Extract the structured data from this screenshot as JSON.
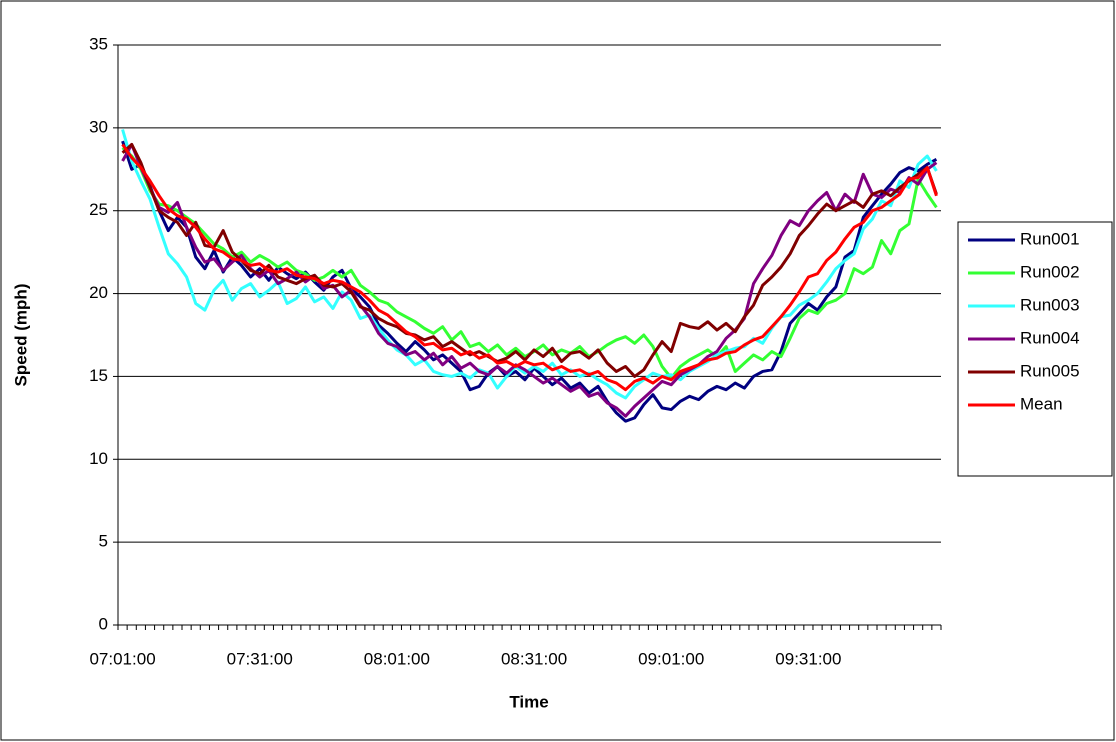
{
  "chart_data": {
    "type": "line",
    "y_label": "Speed (mph)",
    "x_label": "Time",
    "categories": [
      "07:01:00",
      null,
      null,
      null,
      null,
      null,
      null,
      null,
      null,
      null,
      null,
      null,
      null,
      null,
      null,
      "07:31:00",
      null,
      null,
      null,
      null,
      null,
      null,
      null,
      null,
      null,
      null,
      null,
      null,
      null,
      null,
      "08:01:00",
      null,
      null,
      null,
      null,
      null,
      null,
      null,
      null,
      null,
      null,
      null,
      null,
      null,
      null,
      "08:31:00",
      null,
      null,
      null,
      null,
      null,
      null,
      null,
      null,
      null,
      null,
      null,
      null,
      null,
      null,
      "09:01:00",
      null,
      null,
      null,
      null,
      null,
      null,
      null,
      null,
      null,
      null,
      null,
      null,
      null,
      null,
      "09:31:00",
      null,
      null,
      null,
      null,
      null,
      null,
      null,
      null,
      null,
      null,
      null,
      null,
      null,
      null
    ],
    "ylim": [
      0,
      35
    ],
    "yticks": [
      0,
      5,
      10,
      15,
      20,
      25,
      30,
      35
    ],
    "grid": true,
    "legend": "right",
    "series": [
      {
        "name": "Run001",
        "color": "#000080",
        "values": [
          29.2,
          27.5,
          27.8,
          26.5,
          25.0,
          23.8,
          24.6,
          24.0,
          22.2,
          21.5,
          22.6,
          21.3,
          22.2,
          21.7,
          21.0,
          21.5,
          20.8,
          21.6,
          21.2,
          20.9,
          21.3,
          20.7,
          20.2,
          21.0,
          21.4,
          20.3,
          19.8,
          19.2,
          18.1,
          17.6,
          17.0,
          16.5,
          17.1,
          16.6,
          16.0,
          16.3,
          15.8,
          15.3,
          14.2,
          14.4,
          15.2,
          15.6,
          15.0,
          15.3,
          14.8,
          15.5,
          15.0,
          14.5,
          14.9,
          14.3,
          14.6,
          14.0,
          14.4,
          13.5,
          12.8,
          12.3,
          12.5,
          13.3,
          13.9,
          13.1,
          13.0,
          13.5,
          13.8,
          13.6,
          14.1,
          14.4,
          14.2,
          14.6,
          14.3,
          15.0,
          15.3,
          15.4,
          16.5,
          18.2,
          18.8,
          19.4,
          19.0,
          19.8,
          20.4,
          22.2,
          22.6,
          24.6,
          25.3,
          26.0,
          26.6,
          27.3,
          27.6,
          27.4,
          27.8,
          28.1
        ]
      },
      {
        "name": "Run002",
        "color": "#33ff33",
        "values": [
          28.8,
          28.3,
          27.5,
          26.2,
          25.4,
          25.3,
          25.0,
          24.6,
          24.2,
          23.6,
          23.0,
          22.7,
          22.2,
          22.5,
          21.9,
          22.3,
          22.0,
          21.6,
          21.9,
          21.4,
          21.2,
          20.8,
          21.0,
          21.4,
          21.0,
          21.4,
          20.5,
          20.1,
          19.6,
          19.4,
          18.9,
          18.6,
          18.3,
          17.9,
          17.6,
          18.0,
          17.2,
          17.7,
          16.8,
          17.0,
          16.5,
          16.9,
          16.3,
          16.7,
          16.2,
          16.5,
          16.9,
          16.3,
          16.6,
          16.4,
          16.8,
          16.2,
          16.5,
          16.9,
          17.2,
          17.4,
          17.0,
          17.5,
          16.8,
          15.6,
          14.9,
          15.6,
          16.0,
          16.3,
          16.6,
          16.2,
          16.8,
          15.3,
          15.8,
          16.3,
          16.0,
          16.5,
          16.2,
          17.3,
          18.5,
          19.0,
          18.8,
          19.4,
          19.6,
          20.0,
          21.5,
          21.2,
          21.6,
          23.2,
          22.4,
          23.8,
          24.2,
          26.9,
          26.0,
          25.2
        ]
      },
      {
        "name": "Run003",
        "color": "#33ffff",
        "values": [
          29.9,
          28.0,
          26.8,
          25.7,
          24.0,
          22.4,
          21.8,
          21.0,
          19.4,
          19.0,
          20.2,
          20.8,
          19.6,
          20.3,
          20.6,
          19.8,
          20.2,
          20.7,
          19.4,
          19.7,
          20.4,
          19.5,
          19.8,
          19.1,
          20.1,
          19.6,
          18.5,
          18.7,
          17.9,
          17.2,
          16.6,
          16.3,
          15.7,
          16.0,
          15.3,
          15.1,
          15.0,
          15.2,
          14.9,
          15.4,
          15.2,
          14.3,
          15.0,
          15.6,
          15.2,
          15.6,
          15.3,
          15.8,
          15.1,
          15.4,
          15.0,
          15.2,
          14.8,
          14.5,
          14.0,
          13.7,
          14.4,
          14.8,
          15.2,
          15.0,
          15.1,
          14.8,
          15.3,
          15.6,
          15.9,
          16.3,
          16.5,
          16.7,
          16.8,
          17.3,
          17.0,
          17.9,
          18.6,
          18.7,
          19.3,
          19.6,
          20.0,
          20.7,
          21.5,
          22.0,
          22.4,
          23.9,
          24.5,
          25.6,
          25.3,
          26.8,
          26.4,
          27.8,
          28.3,
          27.4
        ]
      },
      {
        "name": "Run004",
        "color": "#800080",
        "values": [
          28.0,
          29.0,
          27.6,
          26.4,
          25.2,
          24.9,
          25.5,
          24.0,
          22.8,
          21.9,
          22.1,
          21.4,
          21.9,
          22.3,
          21.5,
          21.0,
          21.4,
          20.6,
          20.9,
          21.3,
          20.7,
          21.1,
          20.3,
          20.5,
          19.8,
          20.2,
          19.3,
          18.6,
          17.6,
          17.0,
          16.8,
          16.3,
          16.5,
          16.0,
          16.4,
          15.7,
          16.2,
          15.5,
          15.8,
          15.3,
          15.1,
          15.6,
          15.2,
          15.7,
          15.4,
          15.0,
          14.6,
          14.9,
          14.5,
          14.1,
          14.4,
          13.8,
          14.0,
          13.4,
          13.1,
          12.6,
          13.2,
          13.7,
          14.2,
          14.7,
          14.5,
          15.1,
          15.4,
          15.7,
          16.2,
          16.5,
          17.3,
          17.8,
          18.5,
          20.6,
          21.5,
          22.3,
          23.5,
          24.4,
          24.1,
          25.0,
          25.6,
          26.1,
          25.0,
          26.0,
          25.5,
          27.2,
          26.0,
          25.8,
          26.3,
          26.1,
          27.0,
          26.6,
          27.5,
          27.9
        ]
      },
      {
        "name": "Run005",
        "color": "#800000",
        "values": [
          28.5,
          29.0,
          27.9,
          26.4,
          25.0,
          24.6,
          24.3,
          23.5,
          24.3,
          22.9,
          22.8,
          23.8,
          22.5,
          22.0,
          21.4,
          21.2,
          21.7,
          21.0,
          20.8,
          20.6,
          20.9,
          21.1,
          20.5,
          20.4,
          20.6,
          20.1,
          19.2,
          19.0,
          18.5,
          18.2,
          18.0,
          17.6,
          17.5,
          17.2,
          17.4,
          16.8,
          17.1,
          16.7,
          16.3,
          16.5,
          16.2,
          15.9,
          16.1,
          16.5,
          16.0,
          16.6,
          16.2,
          16.7,
          15.9,
          16.4,
          16.5,
          16.1,
          16.6,
          15.8,
          15.3,
          15.6,
          15.0,
          15.4,
          16.3,
          17.1,
          16.5,
          18.2,
          18.0,
          17.9,
          18.3,
          17.8,
          18.2,
          17.7,
          18.6,
          19.3,
          20.5,
          21.0,
          21.6,
          22.4,
          23.5,
          24.1,
          24.8,
          25.4,
          25.0,
          25.3,
          25.6,
          25.2,
          26.0,
          26.2,
          25.9,
          26.4,
          26.8,
          27.2,
          27.6,
          26.0
        ]
      },
      {
        "name": "Mean",
        "color": "#ff0000",
        "values": [
          29.0,
          28.2,
          27.6,
          26.8,
          25.9,
          25.1,
          24.7,
          24.5,
          24.0,
          23.3,
          22.7,
          22.5,
          22.1,
          22.0,
          21.7,
          21.8,
          21.4,
          21.3,
          21.5,
          21.1,
          21.0,
          20.9,
          20.6,
          20.8,
          20.7,
          20.4,
          20.1,
          19.6,
          19.0,
          18.7,
          18.2,
          17.7,
          17.4,
          16.9,
          17.0,
          16.6,
          16.7,
          16.3,
          16.5,
          16.1,
          16.3,
          15.8,
          15.9,
          15.6,
          15.9,
          15.7,
          15.8,
          15.4,
          15.6,
          15.3,
          15.4,
          15.1,
          15.3,
          14.8,
          14.6,
          14.2,
          14.7,
          14.9,
          14.6,
          15.0,
          14.8,
          15.3,
          15.5,
          15.7,
          16.0,
          16.1,
          16.4,
          16.5,
          16.9,
          17.2,
          17.4,
          18.0,
          18.6,
          19.3,
          20.1,
          21.0,
          21.2,
          22.0,
          22.5,
          23.3,
          24.0,
          24.3,
          25.0,
          25.2,
          25.6,
          26.0,
          26.9,
          27.0,
          27.6,
          25.9
        ]
      }
    ]
  }
}
